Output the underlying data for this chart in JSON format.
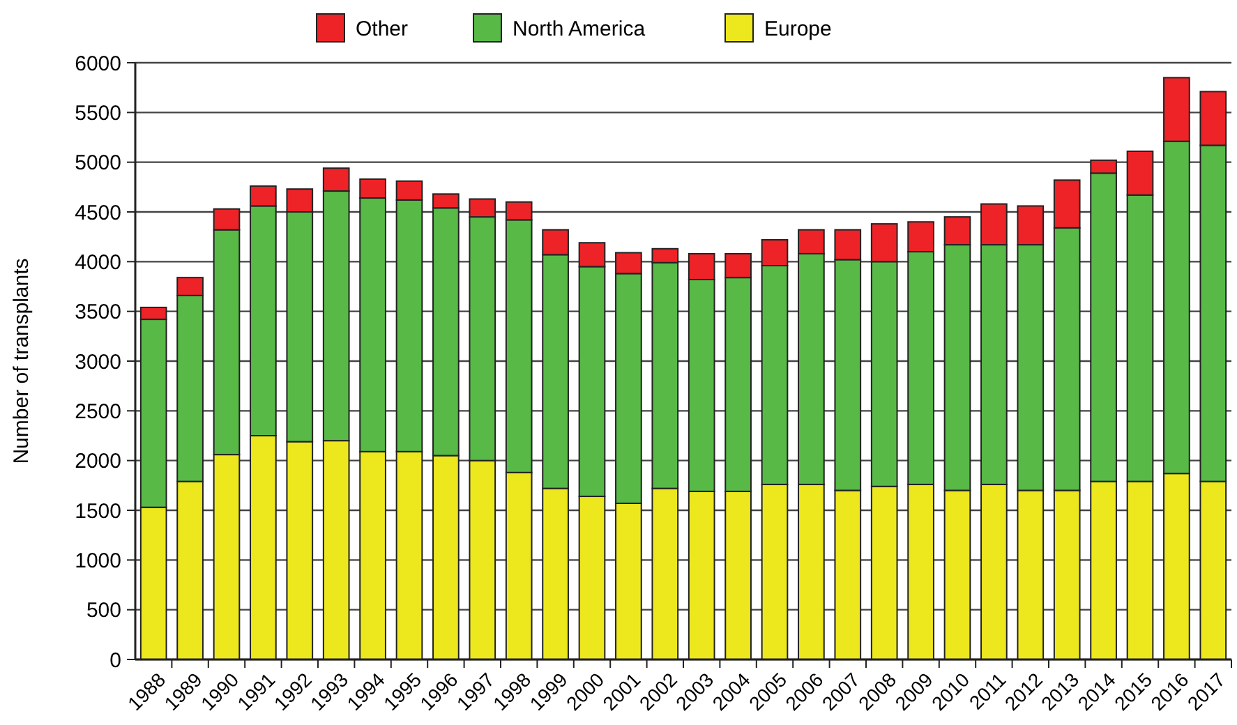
{
  "chart_data": {
    "type": "bar",
    "stacked": true,
    "ylabel": "Number of transplants",
    "categories": [
      "1988",
      "1989",
      "1990",
      "1991",
      "1992",
      "1993",
      "1994",
      "1995",
      "1996",
      "1997",
      "1998",
      "1999",
      "2000",
      "2001",
      "2002",
      "2003",
      "2004",
      "2005",
      "2006",
      "2007",
      "2008",
      "2009",
      "2010",
      "2011",
      "2012",
      "2013",
      "2014",
      "2015",
      "2016",
      "2017"
    ],
    "series": [
      {
        "name": "Europe",
        "color": "#ede81e",
        "values": [
          1530,
          1790,
          2060,
          2250,
          2190,
          2200,
          2090,
          2090,
          2050,
          2000,
          1880,
          1720,
          1640,
          1570,
          1720,
          1690,
          1690,
          1760,
          1760,
          1700,
          1740,
          1760,
          1700,
          1760,
          1700,
          1700,
          1790,
          1790,
          1870,
          1790
        ]
      },
      {
        "name": "North America",
        "color": "#58b947",
        "values": [
          1890,
          1870,
          2260,
          2310,
          2310,
          2510,
          2550,
          2530,
          2490,
          2450,
          2540,
          2350,
          2310,
          2310,
          2270,
          2130,
          2150,
          2200,
          2320,
          2320,
          2260,
          2340,
          2470,
          2410,
          2470,
          2640,
          3100,
          2880,
          3340,
          3380
        ]
      },
      {
        "name": "Other",
        "color": "#ed2327",
        "values": [
          120,
          180,
          210,
          200,
          230,
          230,
          190,
          190,
          140,
          180,
          180,
          250,
          240,
          210,
          140,
          260,
          240,
          260,
          240,
          300,
          380,
          300,
          280,
          410,
          390,
          480,
          130,
          440,
          640,
          540
        ]
      }
    ],
    "ylim": [
      0,
      6000
    ],
    "yticks": [
      0,
      500,
      1000,
      1500,
      2000,
      2500,
      3000,
      3500,
      4000,
      4500,
      5000,
      5500,
      6000
    ],
    "grid": "y",
    "legend": "top"
  }
}
